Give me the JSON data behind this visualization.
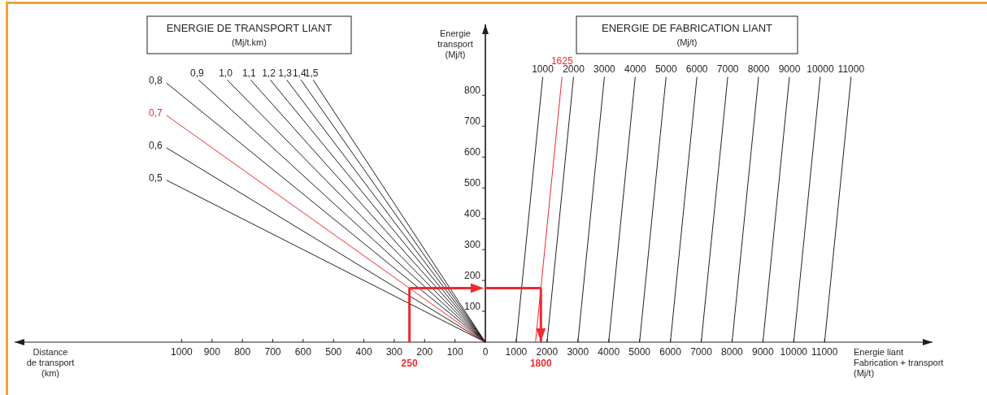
{
  "chart_data": [
    {
      "type": "line",
      "title": "ENERGIE DE TRANSPORT LIANT",
      "subtitle": "(Mj/t.km)",
      "xlabel": "Distance\nde transport\n(km)",
      "xlim": [
        1550,
        0
      ],
      "xticks": [
        1000,
        900,
        800,
        700,
        600,
        500,
        400,
        300,
        200,
        100,
        0
      ],
      "ylim": [
        0,
        1030
      ],
      "tick_labels": "x",
      "ref_lines": [
        {
          "axis": "x",
          "value": 250,
          "label": "250",
          "color": "#ee2a2f"
        }
      ],
      "series": [
        {
          "name": "0,5",
          "color": "#231f20",
          "x": [
            0,
            1050
          ],
          "values": [
            0,
            525
          ]
        },
        {
          "name": "0,6",
          "color": "#231f20",
          "x": [
            0,
            1050
          ],
          "values": [
            0,
            630
          ]
        },
        {
          "name": "0,7",
          "color": "#ee2a2f",
          "x": [
            0,
            1050
          ],
          "values": [
            0,
            735
          ]
        },
        {
          "name": "0,8",
          "color": "#231f20",
          "x": [
            0,
            1050
          ],
          "values": [
            0,
            840
          ]
        },
        {
          "name": "0,9",
          "color": "#231f20",
          "x": [
            0,
            944
          ],
          "values": [
            0,
            850
          ]
        },
        {
          "name": "1,0",
          "color": "#231f20",
          "x": [
            0,
            850
          ],
          "values": [
            0,
            850
          ]
        },
        {
          "name": "1,1",
          "color": "#231f20",
          "x": [
            0,
            773
          ],
          "values": [
            0,
            850
          ]
        },
        {
          "name": "1,2",
          "color": "#231f20",
          "x": [
            0,
            708
          ],
          "values": [
            0,
            850
          ]
        },
        {
          "name": "1,3",
          "color": "#231f20",
          "x": [
            0,
            654
          ],
          "values": [
            0,
            850
          ]
        },
        {
          "name": "1,4",
          "color": "#231f20",
          "x": [
            0,
            607
          ],
          "values": [
            0,
            850
          ]
        },
        {
          "name": "1,5",
          "color": "#231f20",
          "x": [
            0,
            567
          ],
          "values": [
            0,
            850
          ]
        }
      ]
    },
    {
      "type": "line",
      "title": "ENERGIE DE FABRICATION LIANT",
      "subtitle": "(Mj/t)",
      "xlabel": "Energie liant\nFabrication + transport\n(Mj/t)",
      "ylabel": "Energie\ntransport\n(Mj/t)",
      "xlim": [
        0,
        14500
      ],
      "xticks": [
        1000,
        2000,
        3000,
        4000,
        5000,
        6000,
        7000,
        8000,
        9000,
        10000,
        11000
      ],
      "ylim": [
        0,
        1030
      ],
      "yticks": [
        100,
        200,
        300,
        400,
        500,
        600,
        700,
        800
      ],
      "ref_lines": [
        {
          "axis": "x",
          "value": 1800,
          "label": "1800",
          "color": "#ee2a2f"
        }
      ],
      "series": [
        {
          "name": "1000",
          "color": "#231f20",
          "x": [
            1000,
            1860
          ],
          "values": [
            0,
            860
          ]
        },
        {
          "name": "1625",
          "color": "#ee2a2f",
          "x": [
            1625,
            2485
          ],
          "values": [
            0,
            860
          ]
        },
        {
          "name": "2000",
          "color": "#231f20",
          "x": [
            2000,
            2860
          ],
          "values": [
            0,
            860
          ]
        },
        {
          "name": "3000",
          "color": "#231f20",
          "x": [
            3000,
            3860
          ],
          "values": [
            0,
            860
          ]
        },
        {
          "name": "4000",
          "color": "#231f20",
          "x": [
            4000,
            4860
          ],
          "values": [
            0,
            860
          ]
        },
        {
          "name": "5000",
          "color": "#231f20",
          "x": [
            5000,
            5860
          ],
          "values": [
            0,
            860
          ]
        },
        {
          "name": "6000",
          "color": "#231f20",
          "x": [
            6000,
            6860
          ],
          "values": [
            0,
            860
          ]
        },
        {
          "name": "7000",
          "color": "#231f20",
          "x": [
            7000,
            7860
          ],
          "values": [
            0,
            860
          ]
        },
        {
          "name": "8000",
          "color": "#231f20",
          "x": [
            8000,
            8860
          ],
          "values": [
            0,
            860
          ]
        },
        {
          "name": "9000",
          "color": "#231f20",
          "x": [
            9000,
            9860
          ],
          "values": [
            0,
            860
          ]
        },
        {
          "name": "10000",
          "color": "#231f20",
          "x": [
            10000,
            10860
          ],
          "values": [
            0,
            860
          ]
        },
        {
          "name": "11000",
          "color": "#231f20",
          "x": [
            11000,
            11860
          ],
          "values": [
            0,
            860
          ]
        }
      ]
    }
  ]
}
